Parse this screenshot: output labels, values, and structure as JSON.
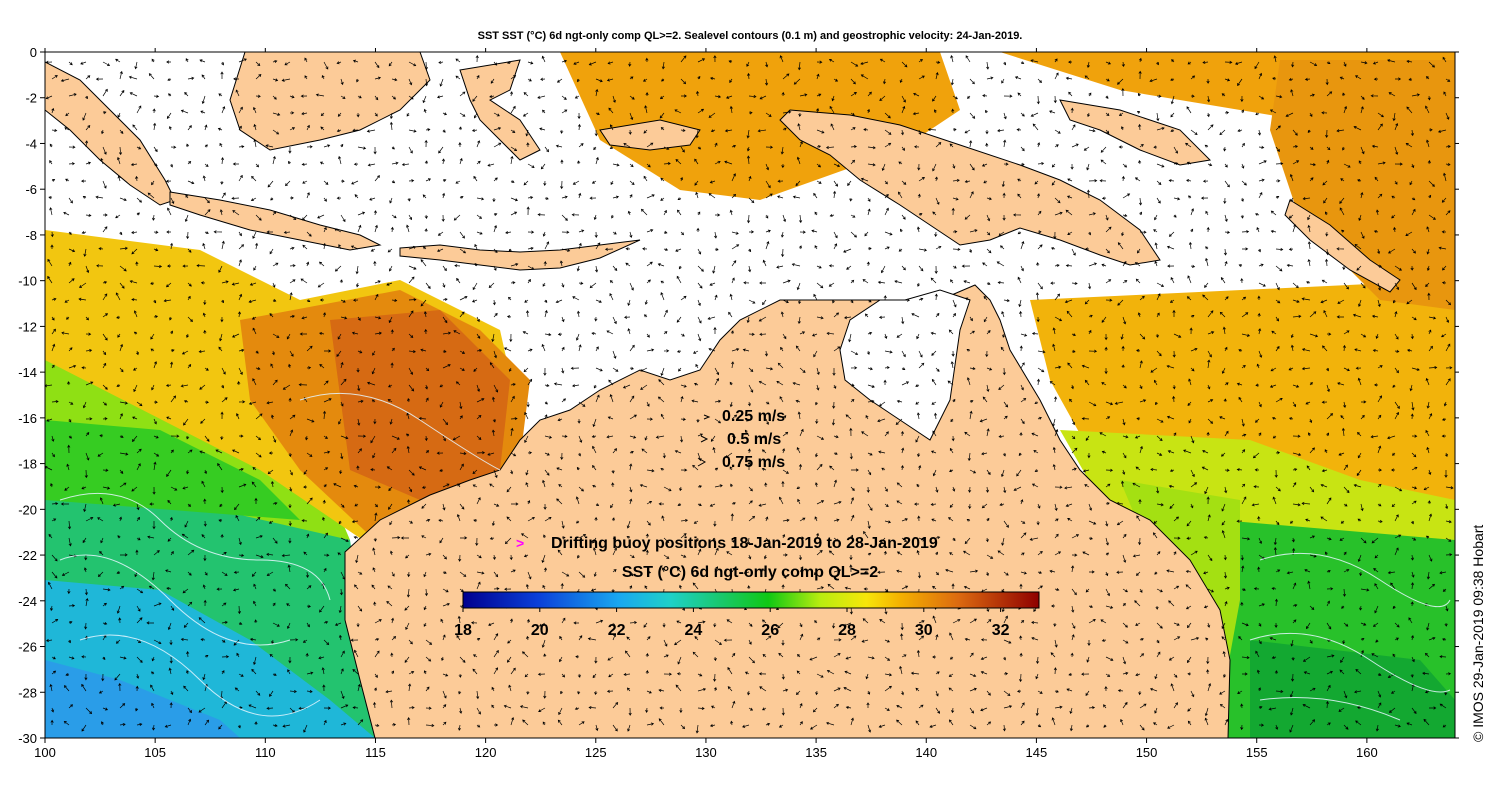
{
  "title": "SST SST (°C) 6d ngt-only comp QL>=2. Sealevel contours (0.1 m) and geostrophic velocity: 24-Jan-2019.",
  "map": {
    "lon_ticks": [
      100,
      105,
      110,
      115,
      120,
      125,
      130,
      135,
      140,
      145,
      150,
      155,
      160
    ],
    "lat_ticks": [
      0,
      -2,
      -4,
      -6,
      -8,
      -10,
      -12,
      -14,
      -16,
      -18,
      -20,
      -22,
      -24,
      -26,
      -28,
      -30
    ],
    "lon_range": [
      100,
      164
    ],
    "lat_range": [
      -30,
      0
    ],
    "land_color": "#fccb98",
    "missing_color": "#ffffff"
  },
  "velocity_legend": {
    "items": [
      {
        "label": "0.25 m/s",
        "speed": 0.25
      },
      {
        "label": "0.5 m/s",
        "speed": 0.5
      },
      {
        "label": "0.75 m/s",
        "speed": 0.75
      }
    ]
  },
  "buoy_legend": {
    "marker": ">",
    "marker_color": "#ff00ff",
    "label": "Drifting buoy positions 18-Jan-2019 to 28-Jan-2019"
  },
  "colorbar": {
    "title": "SST (°C) 6d ngt-only comp QL>=2",
    "min": 18,
    "max": 33,
    "ticks": [
      18,
      20,
      22,
      24,
      26,
      28,
      30,
      32
    ]
  },
  "credit": "© IMOS 29-Jan-2019 09:38 Hobart"
}
